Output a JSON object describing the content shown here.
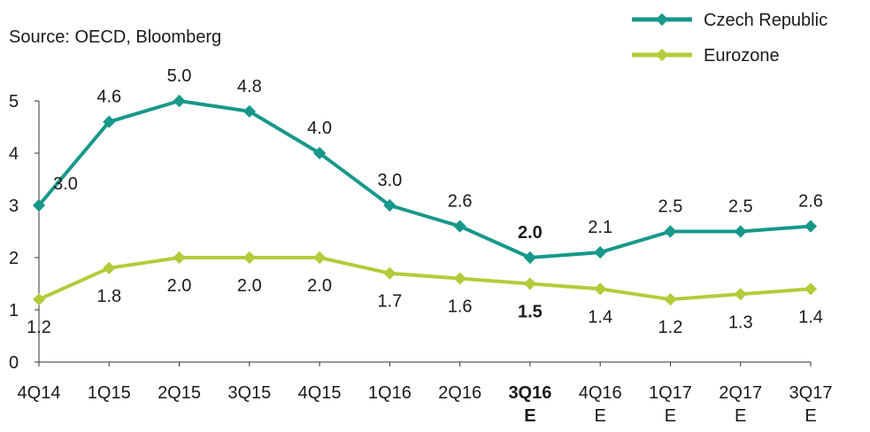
{
  "chart_data": {
    "type": "line",
    "subtitle": "Source: OECD, Bloomberg",
    "categories": [
      "4Q14",
      "1Q15",
      "2Q15",
      "3Q15",
      "4Q15",
      "1Q16",
      "2Q16",
      "3Q16\nE",
      "4Q16\nE",
      "1Q17\nE",
      "2Q17\nE",
      "3Q17\nE"
    ],
    "series": [
      {
        "name": "Czech Republic",
        "color": "#16988a",
        "values": [
          3.0,
          4.6,
          5.0,
          4.8,
          4.0,
          3.0,
          2.6,
          2.0,
          2.1,
          2.5,
          2.5,
          2.6
        ],
        "value_labels": [
          "3.0",
          "4.6",
          "5.0",
          "4.8",
          "4.0",
          "3.0",
          "2.6",
          "2.0",
          "2.1",
          "2.5",
          "2.5",
          "2.6"
        ]
      },
      {
        "name": "Eurozone",
        "color": "#b4cb3a",
        "values": [
          1.2,
          1.8,
          2.0,
          2.0,
          2.0,
          1.7,
          1.6,
          1.5,
          1.4,
          1.2,
          1.3,
          1.4
        ],
        "value_labels": [
          "1.2",
          "1.8",
          "2.0",
          "2.0",
          "2.0",
          "1.7",
          "1.6",
          "1.5",
          "1.4",
          "1.2",
          "1.3",
          "1.4"
        ]
      }
    ],
    "ylim": [
      0,
      5
    ],
    "yticks": [
      0,
      1,
      2,
      3,
      4,
      5
    ],
    "grid": false,
    "legend": "top-right"
  }
}
